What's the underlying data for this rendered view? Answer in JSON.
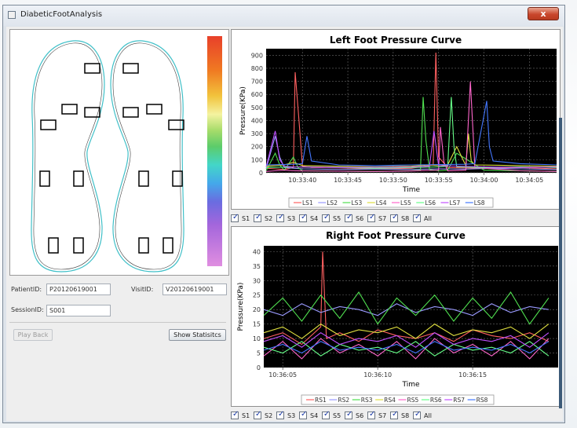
{
  "window": {
    "title": "DiabeticFootAnalysis",
    "close_label": "x"
  },
  "form": {
    "patient_label": "PatientID:",
    "patient_value": "P20120619001",
    "visit_label": "VisitID:",
    "visit_value": "V20120619001",
    "session_label": "SessionID:",
    "session_value": "S001",
    "playback_label": "Play Back",
    "stats_label": "Show Statisitcs"
  },
  "left_checkboxes": [
    "S1",
    "S2",
    "S3",
    "S4",
    "S5",
    "S6",
    "S7",
    "S8",
    "All"
  ],
  "right_checkboxes": [
    "S1",
    "S2",
    "S3",
    "S4",
    "S5",
    "S6",
    "S7",
    "S8",
    "All"
  ],
  "colors": {
    "series": [
      "#ff6060",
      "#9a9aff",
      "#50e050",
      "#e0e040",
      "#ff66cc",
      "#66ff88",
      "#c050ff",
      "#4477ff"
    ],
    "plot_bg": "#000000",
    "grid": "#6a6a6a"
  },
  "chart_data": [
    {
      "type": "line",
      "title": "Left Foot Pressure Curve",
      "xlabel": "Time",
      "ylabel": "Pressure(KPa)",
      "ylim": [
        0,
        950
      ],
      "xlim": [
        0,
        32
      ],
      "x_ticks": [
        4,
        9,
        14,
        19,
        24,
        29
      ],
      "x_tick_labels": [
        "10:33:40",
        "10:33:45",
        "10:33:50",
        "10:33:55",
        "10:34:00",
        "10:34:05"
      ],
      "y_ticks": [
        0,
        100,
        200,
        300,
        400,
        500,
        600,
        700,
        800,
        900
      ],
      "legend": [
        "LS1",
        "LS2",
        "LS3",
        "LS4",
        "LS5",
        "LS6",
        "LS7",
        "LS8"
      ],
      "series": [
        {
          "name": "LS1",
          "x": [
            0,
            1,
            2,
            3,
            3.2,
            3.6,
            4,
            5,
            8,
            12,
            16,
            18.4,
            18.7,
            19,
            20,
            24,
            28,
            32
          ],
          "values": [
            35,
            30,
            25,
            40,
            770,
            420,
            50,
            40,
            38,
            30,
            35,
            60,
            920,
            120,
            40,
            35,
            40,
            30
          ]
        },
        {
          "name": "LS2",
          "x": [
            0,
            1,
            1.5,
            2,
            3,
            4,
            8,
            12,
            16,
            19,
            22,
            25,
            28,
            32
          ],
          "values": [
            30,
            280,
            120,
            40,
            35,
            30,
            25,
            28,
            26,
            30,
            28,
            35,
            30,
            25
          ]
        },
        {
          "name": "LS3",
          "x": [
            0,
            1,
            1.5,
            2,
            3,
            3.5,
            4,
            8,
            12,
            16,
            17,
            17.3,
            17.6,
            18,
            19,
            20,
            21,
            24,
            28,
            32
          ],
          "values": [
            15,
            150,
            60,
            20,
            120,
            40,
            15,
            12,
            10,
            15,
            20,
            580,
            250,
            25,
            15,
            20,
            150,
            20,
            15,
            10
          ]
        },
        {
          "name": "LS4",
          "x": [
            0,
            2,
            3,
            4,
            8,
            12,
            16,
            18,
            19,
            20,
            21,
            22,
            22.3,
            22.6,
            23,
            28,
            32
          ],
          "values": [
            50,
            60,
            80,
            55,
            50,
            45,
            50,
            60,
            55,
            60,
            200,
            55,
            300,
            90,
            60,
            55,
            50
          ]
        },
        {
          "name": "LS5",
          "x": [
            0,
            1,
            2,
            3,
            8,
            12,
            16,
            18,
            19,
            19.2,
            19.6,
            20,
            22,
            22.5,
            23,
            28,
            32
          ],
          "values": [
            10,
            15,
            20,
            15,
            12,
            10,
            14,
            18,
            20,
            350,
            80,
            15,
            20,
            700,
            40,
            15,
            10
          ]
        },
        {
          "name": "LS6",
          "x": [
            0,
            3,
            8,
            12,
            16,
            19,
            20,
            20.4,
            20.7,
            21,
            24,
            28,
            32
          ],
          "values": [
            40,
            45,
            40,
            35,
            40,
            45,
            50,
            580,
            200,
            45,
            40,
            45,
            40
          ]
        },
        {
          "name": "LS7",
          "x": [
            0,
            1,
            1.5,
            2,
            3,
            8,
            12,
            16,
            18,
            18.5,
            19,
            24,
            28,
            32
          ],
          "values": [
            45,
            320,
            100,
            50,
            45,
            40,
            42,
            45,
            50,
            320,
            55,
            45,
            40,
            45
          ]
        },
        {
          "name": "LS8",
          "x": [
            0,
            3,
            4,
            4.5,
            5,
            8,
            12,
            16,
            22,
            23,
            24.3,
            24.6,
            25,
            28,
            32
          ],
          "values": [
            60,
            65,
            70,
            280,
            90,
            60,
            55,
            60,
            65,
            70,
            550,
            200,
            90,
            70,
            60
          ]
        }
      ]
    },
    {
      "type": "line",
      "title": "Right Foot Pressure Curve",
      "xlabel": "Time",
      "ylabel": "Pressure(KPa)",
      "ylim": [
        0,
        42
      ],
      "xlim": [
        0,
        15.5
      ],
      "x_ticks": [
        1,
        6,
        11
      ],
      "x_tick_labels": [
        "10:36:05",
        "10:36:10",
        "10:36:15"
      ],
      "y_ticks": [
        0,
        5,
        10,
        15,
        20,
        25,
        30,
        35,
        40
      ],
      "legend": [
        "RS1",
        "RS2",
        "RS3",
        "RS4",
        "RS5",
        "RS6",
        "RS7",
        "RS8"
      ],
      "series": [
        {
          "name": "RS1",
          "x": [
            0,
            1,
            2,
            3,
            3.1,
            3.3,
            4,
            5,
            6,
            7,
            8,
            9,
            10,
            11,
            12,
            13,
            14,
            15
          ],
          "values": [
            10,
            12,
            8,
            14,
            40,
            10,
            12,
            9,
            13,
            11,
            10,
            12,
            9,
            13,
            11,
            10,
            12,
            9
          ]
        },
        {
          "name": "RS2",
          "x": [
            0,
            1,
            2,
            3,
            4,
            5,
            6,
            7,
            8,
            9,
            10,
            11,
            12,
            13,
            14,
            15
          ],
          "values": [
            20,
            18,
            22,
            19,
            21,
            20,
            18,
            22,
            19,
            21,
            20,
            18,
            22,
            19,
            21,
            20
          ]
        },
        {
          "name": "RS3",
          "x": [
            0,
            1,
            2,
            3,
            4,
            5,
            6,
            7,
            8,
            9,
            10,
            11,
            12,
            13,
            14,
            15
          ],
          "values": [
            18,
            24,
            16,
            25,
            17,
            26,
            15,
            24,
            18,
            25,
            16,
            24,
            17,
            26,
            15,
            24
          ]
        },
        {
          "name": "RS4",
          "x": [
            0,
            1,
            2,
            3,
            4,
            5,
            6,
            7,
            8,
            9,
            10,
            11,
            12,
            13,
            14,
            15
          ],
          "values": [
            12,
            14,
            10,
            15,
            11,
            13,
            12,
            14,
            10,
            15,
            11,
            13,
            12,
            14,
            10,
            15
          ]
        },
        {
          "name": "RS5",
          "x": [
            0,
            1,
            2,
            3,
            4,
            5,
            6,
            7,
            8,
            9,
            10,
            11,
            12,
            13,
            14,
            15
          ],
          "values": [
            4,
            9,
            3,
            10,
            5,
            8,
            4,
            9,
            3,
            10,
            5,
            8,
            4,
            9,
            3,
            10
          ]
        },
        {
          "name": "RS6",
          "x": [
            0,
            1,
            2,
            3,
            4,
            5,
            6,
            7,
            8,
            9,
            10,
            11,
            12,
            13,
            14,
            15
          ],
          "values": [
            7,
            5,
            9,
            4,
            8,
            6,
            7,
            5,
            9,
            4,
            8,
            6,
            7,
            5,
            9,
            4
          ]
        },
        {
          "name": "RS7",
          "x": [
            0,
            1,
            2,
            3,
            4,
            5,
            6,
            7,
            8,
            9,
            10,
            11,
            12,
            13,
            14,
            15
          ],
          "values": [
            9,
            11,
            7,
            12,
            8,
            10,
            9,
            11,
            7,
            12,
            8,
            10,
            9,
            11,
            7,
            12
          ]
        },
        {
          "name": "RS8",
          "x": [
            0,
            1,
            2,
            3,
            4,
            5,
            6,
            7,
            8,
            9,
            10,
            11,
            12,
            13,
            14,
            15
          ],
          "values": [
            6,
            8,
            5,
            9,
            6,
            7,
            6,
            8,
            5,
            9,
            6,
            7,
            6,
            8,
            5,
            9
          ]
        }
      ]
    }
  ]
}
